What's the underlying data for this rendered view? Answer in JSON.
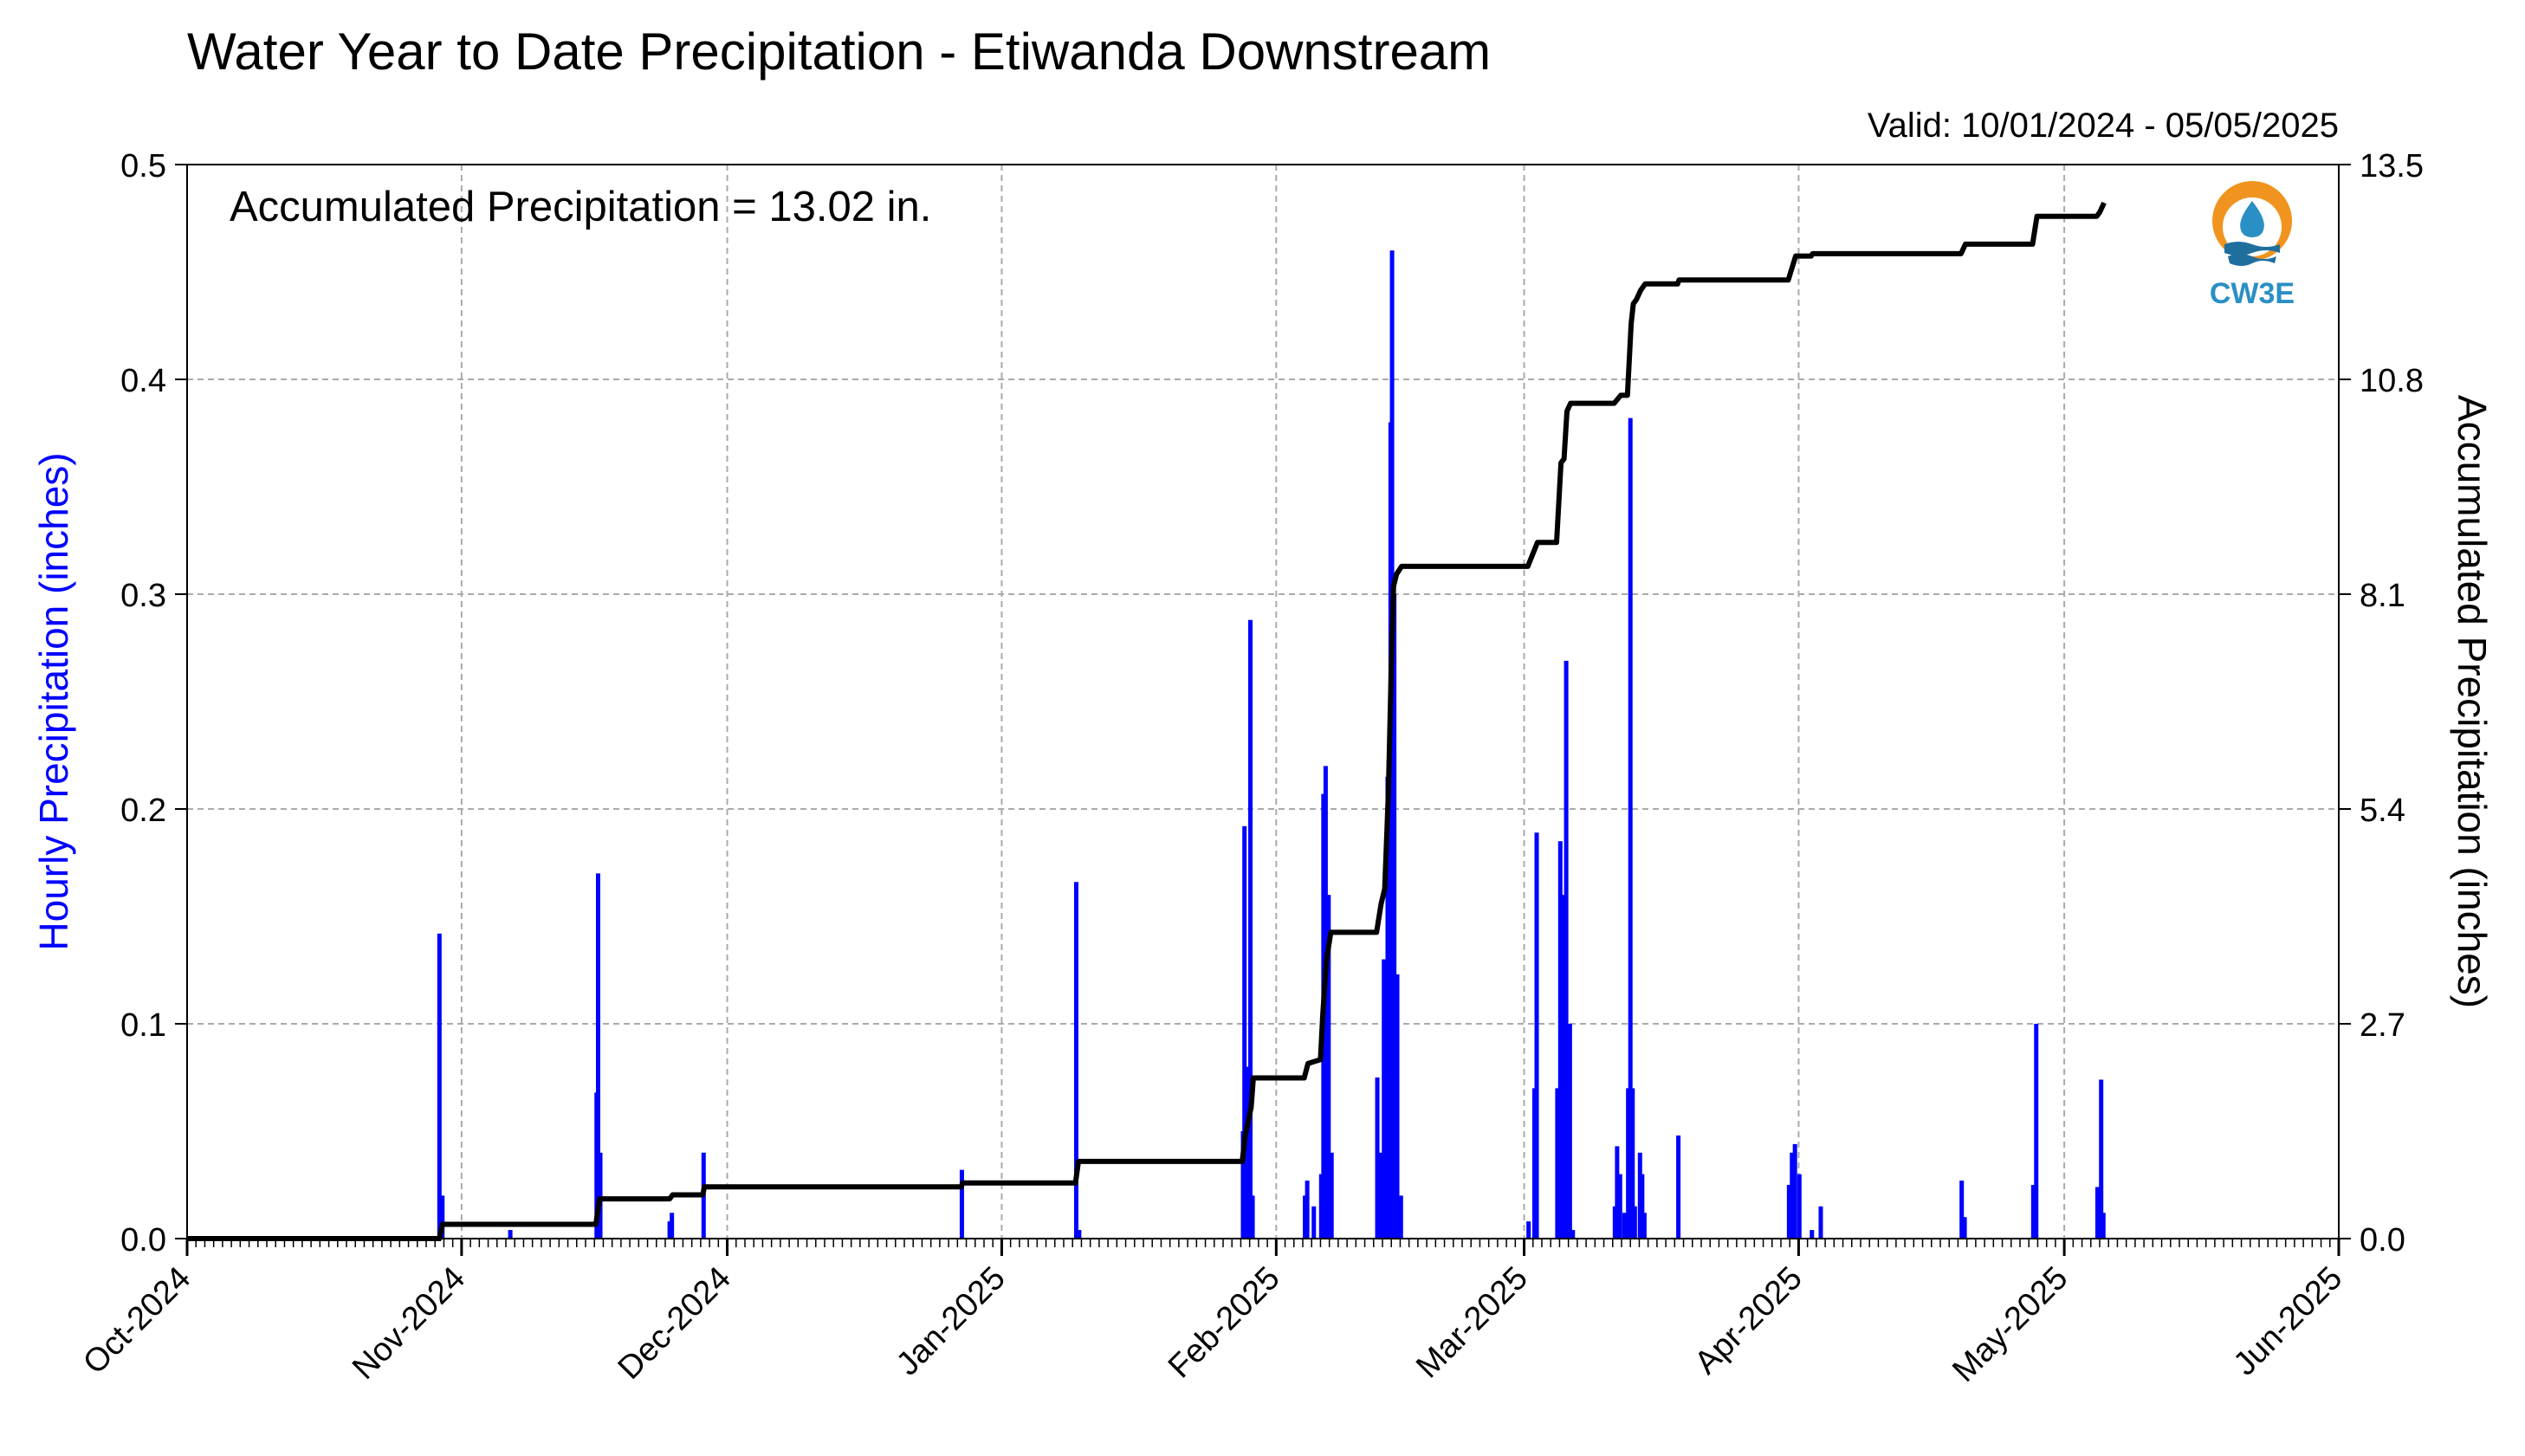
{
  "chart_data": {
    "type": "bar",
    "title": "Water Year to Date Precipitation - Etiwanda Downstream",
    "subtitle": "Valid: 10/01/2024 - 05/05/2025",
    "annotation": "Accumulated Precipitation = 13.02 in.",
    "logo_text": "CW3E",
    "ylabel_left": "Hourly Precipitation (inches)",
    "ylabel_right": "Accumulated Precipitation (inches)",
    "left_axis_color": "#0000ff",
    "bar_color": "#0000ff",
    "line_color": "#000000",
    "grid": true,
    "ylim_left": [
      0,
      0.5
    ],
    "ylim_right": [
      0,
      13.5
    ],
    "yticks_left": [
      "0.0",
      "0.1",
      "0.2",
      "0.3",
      "0.4",
      "0.5"
    ],
    "yticks_right": [
      "0.0",
      "2.7",
      "5.4",
      "8.1",
      "10.8",
      "13.5"
    ],
    "xlim": [
      "2024-10-01",
      "2025-06-01"
    ],
    "xtick_labels": [
      "Oct-2024",
      "Nov-2024",
      "Dec-2024",
      "Jan-2025",
      "Feb-2025",
      "Mar-2025",
      "Apr-2025",
      "May-2025",
      "Jun-2025"
    ],
    "xtick_dates": [
      "2024-10-01",
      "2024-11-01",
      "2024-12-01",
      "2025-01-01",
      "2025-02-01",
      "2025-03-01",
      "2025-04-01",
      "2025-05-01",
      "2025-06-01"
    ],
    "series": [
      {
        "name": "Hourly Precipitation",
        "kind": "bar",
        "points": [
          [
            "2024-10-29T12",
            0.142
          ],
          [
            "2024-10-29T20",
            0.02
          ],
          [
            "2024-11-06T12",
            0.004
          ],
          [
            "2024-11-16T06",
            0.068
          ],
          [
            "2024-11-16T10",
            0.17
          ],
          [
            "2024-11-16T16",
            0.04
          ],
          [
            "2024-11-24T12",
            0.008
          ],
          [
            "2024-11-24T18",
            0.012
          ],
          [
            "2024-11-28T08",
            0.04
          ],
          [
            "2024-12-27T12",
            0.032
          ],
          [
            "2025-01-09T10",
            0.166
          ],
          [
            "2025-01-09T18",
            0.004
          ],
          [
            "2025-01-28T06",
            0.05
          ],
          [
            "2025-01-28T10",
            0.192
          ],
          [
            "2025-01-28T18",
            0.08
          ],
          [
            "2025-01-29T02",
            0.288
          ],
          [
            "2025-01-29T08",
            0.02
          ],
          [
            "2025-02-04T06",
            0.02
          ],
          [
            "2025-02-04T12",
            0.027
          ],
          [
            "2025-02-05T06",
            0.015
          ],
          [
            "2025-02-06T02",
            0.03
          ],
          [
            "2025-02-06T08",
            0.207
          ],
          [
            "2025-02-06T14",
            0.22
          ],
          [
            "2025-02-06T22",
            0.16
          ],
          [
            "2025-02-07T06",
            0.04
          ],
          [
            "2025-02-12T10",
            0.075
          ],
          [
            "2025-02-12T18",
            0.04
          ],
          [
            "2025-02-13T04",
            0.13
          ],
          [
            "2025-02-13T14",
            0.215
          ],
          [
            "2025-02-13T22",
            0.38
          ],
          [
            "2025-02-14T02",
            0.46
          ],
          [
            "2025-02-14T08",
            0.3
          ],
          [
            "2025-02-14T16",
            0.123
          ],
          [
            "2025-02-15T02",
            0.02
          ],
          [
            "2025-03-01T12",
            0.008
          ],
          [
            "2025-03-02T04",
            0.07
          ],
          [
            "2025-03-02T10",
            0.189
          ],
          [
            "2025-03-04T18",
            0.07
          ],
          [
            "2025-03-05T02",
            0.185
          ],
          [
            "2025-03-05T10",
            0.16
          ],
          [
            "2025-03-05T18",
            0.269
          ],
          [
            "2025-03-06T04",
            0.1
          ],
          [
            "2025-03-06T12",
            0.004
          ],
          [
            "2025-03-11T06",
            0.015
          ],
          [
            "2025-03-11T12",
            0.043
          ],
          [
            "2025-03-11T20",
            0.03
          ],
          [
            "2025-03-12T08",
            0.012
          ],
          [
            "2025-03-12T18",
            0.07
          ],
          [
            "2025-03-13T00",
            0.382
          ],
          [
            "2025-03-13T06",
            0.07
          ],
          [
            "2025-03-13T12",
            0.015
          ],
          [
            "2025-03-14T02",
            0.04
          ],
          [
            "2025-03-14T08",
            0.03
          ],
          [
            "2025-03-14T14",
            0.012
          ],
          [
            "2025-03-18T10",
            0.048
          ],
          [
            "2025-03-30T22",
            0.025
          ],
          [
            "2025-03-31T06",
            0.04
          ],
          [
            "2025-03-31T14",
            0.044
          ],
          [
            "2025-04-01T02",
            0.03
          ],
          [
            "2025-04-02T12",
            0.004
          ],
          [
            "2025-04-03T12",
            0.015
          ],
          [
            "2025-04-19T10",
            0.027
          ],
          [
            "2025-04-19T18",
            0.01
          ],
          [
            "2025-04-27T12",
            0.025
          ],
          [
            "2025-04-27T20",
            0.1
          ],
          [
            "2025-05-04T18",
            0.024
          ],
          [
            "2025-05-05T04",
            0.074
          ],
          [
            "2025-05-05T10",
            0.012
          ]
        ]
      },
      {
        "name": "Accumulated Precipitation",
        "kind": "step-line",
        "points": [
          [
            "2024-10-01T00",
            0.0
          ],
          [
            "2024-10-29T12",
            0.0
          ],
          [
            "2024-10-29T20",
            0.18
          ],
          [
            "2024-11-16T04",
            0.18
          ],
          [
            "2024-11-16T14",
            0.5
          ],
          [
            "2024-11-24T12",
            0.5
          ],
          [
            "2024-11-24T20",
            0.55
          ],
          [
            "2024-11-28T06",
            0.55
          ],
          [
            "2024-11-28T10",
            0.65
          ],
          [
            "2024-12-27T10",
            0.65
          ],
          [
            "2024-12-27T14",
            0.7
          ],
          [
            "2025-01-09T08",
            0.7
          ],
          [
            "2025-01-09T16",
            0.97
          ],
          [
            "2025-01-28T04",
            0.97
          ],
          [
            "2025-01-28T12",
            1.3
          ],
          [
            "2025-01-29T04",
            1.65
          ],
          [
            "2025-01-29T10",
            2.02
          ],
          [
            "2025-02-04T04",
            2.02
          ],
          [
            "2025-02-04T14",
            2.2
          ],
          [
            "2025-02-06T00",
            2.25
          ],
          [
            "2025-02-06T06",
            2.8
          ],
          [
            "2025-02-06T16",
            3.5
          ],
          [
            "2025-02-07T04",
            3.85
          ],
          [
            "2025-02-12T08",
            3.85
          ],
          [
            "2025-02-12T20",
            4.2
          ],
          [
            "2025-02-13T06",
            4.4
          ],
          [
            "2025-02-13T16",
            5.6
          ],
          [
            "2025-02-14T00",
            7.2
          ],
          [
            "2025-02-14T06",
            8.2
          ],
          [
            "2025-02-14T14",
            8.35
          ],
          [
            "2025-02-15T04",
            8.45
          ],
          [
            "2025-03-01T10",
            8.45
          ],
          [
            "2025-03-02T12",
            8.75
          ],
          [
            "2025-03-04T16",
            8.75
          ],
          [
            "2025-03-05T04",
            9.75
          ],
          [
            "2025-03-05T12",
            9.8
          ],
          [
            "2025-03-05T20",
            10.4
          ],
          [
            "2025-03-06T06",
            10.5
          ],
          [
            "2025-03-11T04",
            10.5
          ],
          [
            "2025-03-11T22",
            10.6
          ],
          [
            "2025-03-12T16",
            10.6
          ],
          [
            "2025-03-13T02",
            11.5
          ],
          [
            "2025-03-13T08",
            11.75
          ],
          [
            "2025-03-13T16",
            11.8
          ],
          [
            "2025-03-14T04",
            11.92
          ],
          [
            "2025-03-14T16",
            12.0
          ],
          [
            "2025-03-18T08",
            12.0
          ],
          [
            "2025-03-18T12",
            12.05
          ],
          [
            "2025-03-30T20",
            12.05
          ],
          [
            "2025-03-31T16",
            12.35
          ],
          [
            "2025-04-02T10",
            12.35
          ],
          [
            "2025-04-02T14",
            12.38
          ],
          [
            "2025-04-19T08",
            12.38
          ],
          [
            "2025-04-19T20",
            12.5
          ],
          [
            "2025-04-27T10",
            12.5
          ],
          [
            "2025-04-27T22",
            12.85
          ],
          [
            "2025-05-04T16",
            12.85
          ],
          [
            "2025-05-05T00",
            12.9
          ],
          [
            "2025-05-05T12",
            13.02
          ]
        ]
      }
    ]
  }
}
